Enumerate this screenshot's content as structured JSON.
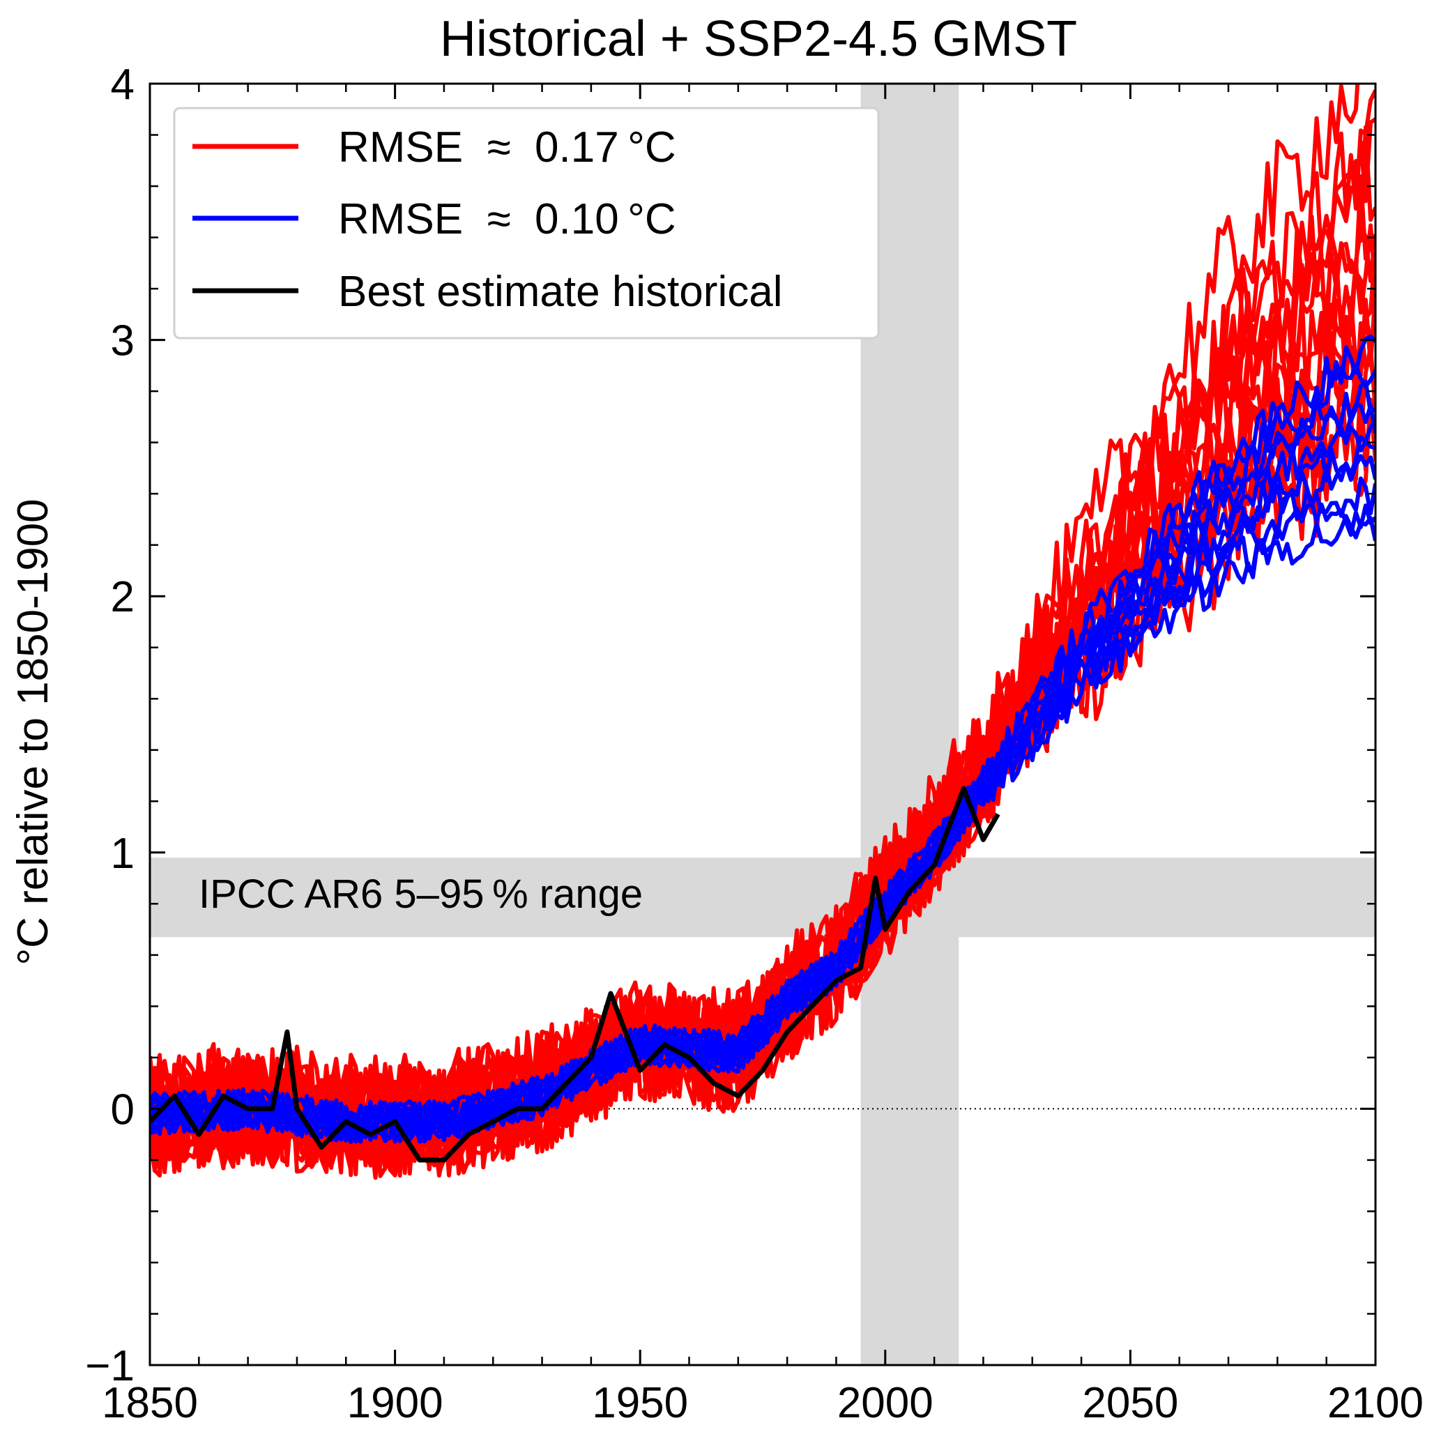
{
  "chart_data": {
    "type": "line",
    "title": "Historical + SSP2-4.5 GMST",
    "xlabel": "",
    "ylabel": "°C relative to 1850-1900",
    "xlim": [
      1850,
      2100
    ],
    "ylim": [
      -1,
      4
    ],
    "xticks": [
      1850,
      1900,
      1950,
      2000,
      2050,
      2100
    ],
    "xtick_labels": [
      "1850",
      "1900",
      "1950",
      "2000",
      "2050",
      "2100"
    ],
    "yticks": [
      -1,
      0,
      1,
      2,
      3,
      4
    ],
    "ytick_labels": [
      "−1",
      "0",
      "1",
      "2",
      "3",
      "4"
    ],
    "grid": false,
    "legend_position": "top-left",
    "zero_line": {
      "y": 0,
      "style": "dotted"
    },
    "shaded_regions": [
      {
        "orientation": "vertical",
        "x0": 1995,
        "x1": 2015,
        "color": "#d9d9d9"
      },
      {
        "orientation": "horizontal",
        "y0": 0.67,
        "y1": 0.98,
        "color": "#d9d9d9",
        "label": "IPCC AR6 5–95 % range"
      }
    ],
    "legend": [
      {
        "label": "RMSE  ≈  0.17 °C",
        "color": "#ff0000"
      },
      {
        "label": "RMSE  ≈  0.10 °C",
        "color": "#0000ff"
      },
      {
        "label": "Best estimate historical",
        "color": "#000000"
      }
    ],
    "series": [
      {
        "group": "rmse_017",
        "color": "#ff0000",
        "count": 10,
        "x": [
          1850,
          1870,
          1890,
          1910,
          1930,
          1950,
          1970,
          1980,
          1990,
          2000,
          2010,
          2020,
          2030,
          2040,
          2050,
          2060,
          2070,
          2080,
          2090,
          2100
        ],
        "values": [
          -0.05,
          0.0,
          -0.05,
          -0.05,
          0.05,
          0.25,
          0.2,
          0.4,
          0.55,
          0.8,
          1.05,
          1.3,
          1.6,
          1.85,
          2.1,
          2.35,
          2.6,
          2.8,
          3.0,
          3.2
        ]
      },
      {
        "group": "rmse_017",
        "color": "#ff0000",
        "x": [
          1850,
          1870,
          1890,
          1910,
          1930,
          1950,
          1970,
          1980,
          1990,
          2000,
          2010,
          2020,
          2030,
          2040,
          2050,
          2060,
          2070,
          2080,
          2090,
          2100
        ],
        "values": [
          0.0,
          0.05,
          0.0,
          0.0,
          0.1,
          0.3,
          0.25,
          0.45,
          0.6,
          0.85,
          1.1,
          1.4,
          1.7,
          2.0,
          2.3,
          2.6,
          2.9,
          3.1,
          3.3,
          3.5
        ]
      },
      {
        "group": "rmse_010",
        "color": "#0000ff",
        "count": 10,
        "x": [
          1850,
          1870,
          1890,
          1910,
          1930,
          1950,
          1970,
          1980,
          1990,
          2000,
          2010,
          2020,
          2030,
          2040,
          2050,
          2060,
          2070,
          2080,
          2090,
          2100
        ],
        "values": [
          -0.02,
          0.0,
          -0.05,
          -0.05,
          0.05,
          0.25,
          0.22,
          0.42,
          0.55,
          0.8,
          1.0,
          1.25,
          1.5,
          1.75,
          1.95,
          2.15,
          2.3,
          2.45,
          2.55,
          2.6
        ]
      },
      {
        "group": "best_estimate",
        "color": "#000000",
        "x": [
          1850,
          1855,
          1860,
          1865,
          1870,
          1875,
          1878,
          1880,
          1885,
          1890,
          1895,
          1900,
          1905,
          1910,
          1915,
          1920,
          1925,
          1930,
          1935,
          1940,
          1944,
          1950,
          1955,
          1960,
          1965,
          1970,
          1975,
          1980,
          1985,
          1990,
          1995,
          1998,
          2000,
          2005,
          2010,
          2016,
          2020,
          2023
        ],
        "values": [
          -0.05,
          0.05,
          -0.1,
          0.05,
          0.0,
          0.0,
          0.3,
          0.0,
          -0.15,
          -0.05,
          -0.1,
          -0.05,
          -0.2,
          -0.2,
          -0.1,
          -0.05,
          0.0,
          0.0,
          0.1,
          0.2,
          0.45,
          0.15,
          0.25,
          0.2,
          0.1,
          0.05,
          0.15,
          0.3,
          0.4,
          0.5,
          0.55,
          0.9,
          0.7,
          0.85,
          0.95,
          1.25,
          1.05,
          1.15
        ]
      }
    ]
  }
}
